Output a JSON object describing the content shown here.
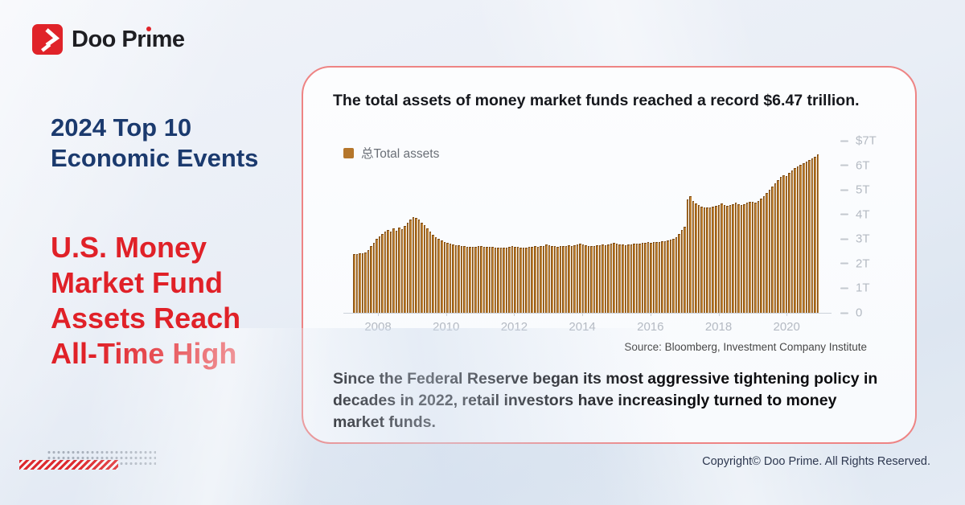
{
  "brand": {
    "name": "Doo Prime",
    "logo_icon": "doo-prime-arrow-icon",
    "logo_color": "#e02329"
  },
  "left_panel": {
    "series_title_lines": [
      "2024 Top 10",
      "Economic Events"
    ],
    "headline_lines": [
      "U.S. Money",
      "Market Fund",
      "Assets Reach",
      "All-Time High"
    ]
  },
  "card": {
    "title": "The total assets of money market funds reached a record $6.47 trillion.",
    "source": "Source:  Bloomberg, Investment Company Institute",
    "paragraph": "Since the Federal Reserve began its most aggressive tightening policy in decades in 2022, retail investors have increasingly turned to money market funds."
  },
  "chart_data": {
    "type": "bar",
    "title": "The total assets of money market funds reached a record $6.47 trillion.",
    "legend": [
      {
        "label": "总Total assets",
        "color": "#b5762b"
      }
    ],
    "legend_position": "top-left",
    "grid": false,
    "record_value_trillions": 6.47,
    "y_tick_labels": [
      "$7T",
      "6T",
      "5T",
      "4T",
      "3T",
      "2T",
      "1T",
      "0"
    ],
    "ylim": [
      0,
      7
    ],
    "x_tick_labels": [
      "2008",
      "2010",
      "2012",
      "2014",
      "2016",
      "2018",
      "2020"
    ],
    "x_range_years": [
      2007,
      2021
    ],
    "unit": "USD trillions, monthly",
    "values": [
      2.38,
      2.4,
      2.41,
      2.43,
      2.46,
      2.55,
      2.7,
      2.85,
      3.0,
      3.1,
      3.22,
      3.3,
      3.38,
      3.3,
      3.42,
      3.35,
      3.46,
      3.4,
      3.52,
      3.68,
      3.8,
      3.9,
      3.86,
      3.78,
      3.68,
      3.55,
      3.42,
      3.3,
      3.18,
      3.08,
      3.0,
      2.93,
      2.88,
      2.83,
      2.8,
      2.78,
      2.76,
      2.74,
      2.72,
      2.7,
      2.69,
      2.68,
      2.68,
      2.69,
      2.71,
      2.7,
      2.69,
      2.68,
      2.67,
      2.68,
      2.66,
      2.65,
      2.64,
      2.65,
      2.66,
      2.68,
      2.71,
      2.69,
      2.67,
      2.66,
      2.65,
      2.66,
      2.67,
      2.68,
      2.7,
      2.69,
      2.71,
      2.73,
      2.77,
      2.75,
      2.72,
      2.7,
      2.69,
      2.7,
      2.71,
      2.72,
      2.74,
      2.73,
      2.75,
      2.77,
      2.8,
      2.78,
      2.75,
      2.73,
      2.72,
      2.73,
      2.74,
      2.75,
      2.77,
      2.76,
      2.78,
      2.8,
      2.83,
      2.81,
      2.79,
      2.77,
      2.76,
      2.77,
      2.78,
      2.8,
      2.82,
      2.81,
      2.83,
      2.85,
      2.88,
      2.86,
      2.88,
      2.87,
      2.89,
      2.9,
      2.92,
      2.94,
      2.97,
      3.0,
      3.08,
      3.22,
      3.38,
      3.5,
      4.62,
      4.75,
      4.55,
      4.45,
      4.38,
      4.33,
      4.3,
      4.28,
      4.3,
      4.33,
      4.36,
      4.4,
      4.45,
      4.38,
      4.34,
      4.37,
      4.42,
      4.48,
      4.43,
      4.39,
      4.43,
      4.47,
      4.51,
      4.5,
      4.48,
      4.55,
      4.63,
      4.73,
      4.86,
      5.0,
      5.15,
      5.28,
      5.4,
      5.52,
      5.6,
      5.55,
      5.68,
      5.8,
      5.88,
      5.95,
      6.02,
      6.08,
      6.15,
      6.2,
      6.28,
      6.35,
      6.45
    ],
    "bar_fill": "#b5762b",
    "bar_stroke": "#7d4a12"
  },
  "colors": {
    "accent_red": "#e02128",
    "navy": "#1b3a6e",
    "card_border": "#ee8484",
    "axis_text": "#b4bac3"
  },
  "footer": {
    "copyright": "Copyright© Doo Prime. All Rights Reserved."
  }
}
